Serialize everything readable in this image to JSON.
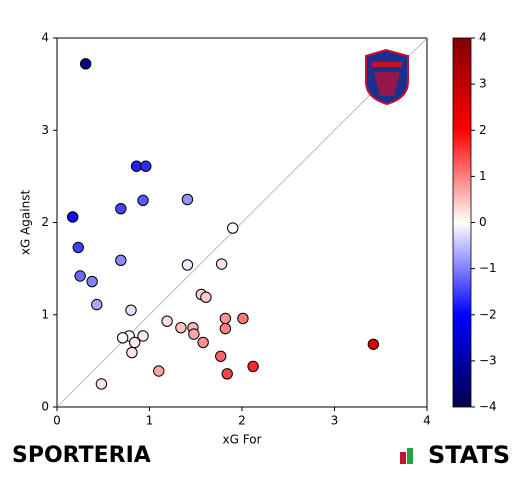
{
  "chart_data": {
    "type": "scatter",
    "xlabel": "xG For",
    "ylabel": "xG Against",
    "x": [
      0.31,
      0.86,
      0.96,
      0.17,
      0.93,
      0.69,
      1.41,
      0.23,
      1.9,
      0.69,
      0.25,
      0.38,
      1.41,
      1.78,
      0.43,
      0.8,
      1.56,
      1.61,
      1.82,
      2.01,
      1.19,
      1.34,
      1.47,
      1.48,
      1.82,
      0.93,
      0.78,
      0.71,
      0.84,
      1.58,
      0.81,
      1.77,
      3.42,
      2.12,
      1.1,
      1.84,
      0.48
    ],
    "y": [
      3.72,
      2.61,
      2.61,
      2.06,
      2.24,
      2.15,
      2.25,
      1.73,
      1.94,
      1.59,
      1.42,
      1.36,
      1.54,
      1.55,
      1.11,
      1.05,
      1.22,
      1.19,
      0.96,
      0.96,
      0.93,
      0.86,
      0.86,
      0.79,
      0.85,
      0.77,
      0.77,
      0.75,
      0.7,
      0.7,
      0.59,
      0.55,
      0.68,
      0.44,
      0.39,
      0.36,
      0.25
    ],
    "xlim": [
      0,
      4
    ],
    "ylim": [
      0,
      4
    ],
    "xticks": [
      0,
      1,
      2,
      3,
      4
    ],
    "yticks": [
      0,
      1,
      2,
      3,
      4
    ],
    "diagonal": true,
    "colormap": "seismic",
    "clim": [
      -4,
      4
    ],
    "cticks": [
      {
        "value": -4,
        "label": "−4"
      },
      {
        "value": -3,
        "label": "−3"
      },
      {
        "value": -2,
        "label": "−2"
      },
      {
        "value": -1,
        "label": "−1"
      },
      0,
      1,
      2,
      3,
      4
    ],
    "footer_left": "SPORTERIA",
    "footer_right": "STATS"
  }
}
